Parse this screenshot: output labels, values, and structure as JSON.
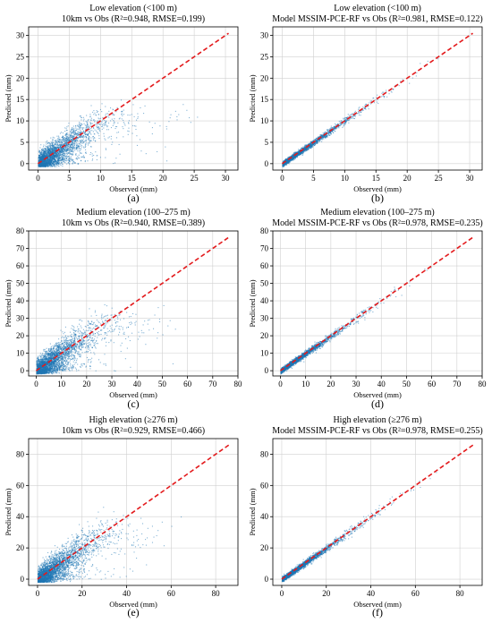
{
  "colors": {
    "points": "#1f77b4",
    "identity_line": "#e31a1c",
    "grid": "#d0d0d0",
    "axis": "#000000"
  },
  "chart_data": [
    {
      "id": "a",
      "label": "(a)",
      "type": "scatter",
      "title": "Low elevation (<100 m)",
      "subtitle": "10km vs Obs (R²=0.948, RMSE=0.199)",
      "xlabel": "Observed (mm)",
      "ylabel": "Predicted (mm)",
      "xlim": [
        -1.5,
        32
      ],
      "ylim": [
        -1.5,
        32
      ],
      "xticks": [
        0,
        5,
        10,
        15,
        20,
        25,
        30
      ],
      "yticks": [
        0,
        5,
        10,
        15,
        20,
        25,
        30
      ],
      "grid": true,
      "identity_line": [
        0,
        30.5
      ],
      "pattern": "wide",
      "maxObs": 30.5
    },
    {
      "id": "b",
      "label": "(b)",
      "type": "scatter",
      "title": "Low elevation (<100 m)",
      "subtitle": "Model MSSIM-PCE-RF vs Obs (R²=0.981, RMSE=0.122)",
      "xlabel": "Observed (mm)",
      "ylabel": "Predicted (mm)",
      "xlim": [
        -1.5,
        32
      ],
      "ylim": [
        -1.5,
        32
      ],
      "xticks": [
        0,
        5,
        10,
        15,
        20,
        25,
        30
      ],
      "yticks": [
        0,
        5,
        10,
        15,
        20,
        25,
        30
      ],
      "grid": true,
      "identity_line": [
        0,
        30.5
      ],
      "pattern": "tight",
      "maxObs": 30.5
    },
    {
      "id": "c",
      "label": "(c)",
      "type": "scatter",
      "title": "Medium elevation (100–275 m)",
      "subtitle": "10km vs Obs (R²=0.940, RMSE=0.389)",
      "xlabel": "Observed (mm)",
      "ylabel": "Predicted (mm)",
      "xlim": [
        -3,
        80
      ],
      "ylim": [
        -3,
        80
      ],
      "xticks": [
        0,
        10,
        20,
        30,
        40,
        50,
        60,
        70,
        80
      ],
      "yticks": [
        0,
        10,
        20,
        30,
        40,
        50,
        60,
        70,
        80
      ],
      "grid": true,
      "identity_line": [
        0,
        76.5
      ],
      "pattern": "wide",
      "maxObs": 76.5
    },
    {
      "id": "d",
      "label": "(d)",
      "type": "scatter",
      "title": "Medium elevation (100–275 m)",
      "subtitle": "Model MSSIM-PCE-RF vs Obs (R²=0.978, RMSE=0.235)",
      "xlabel": "Observed (mm)",
      "ylabel": "Predicted (mm)",
      "xlim": [
        -3,
        80
      ],
      "ylim": [
        -3,
        80
      ],
      "xticks": [
        0,
        10,
        20,
        30,
        40,
        50,
        60,
        70,
        80
      ],
      "yticks": [
        0,
        10,
        20,
        30,
        40,
        50,
        60,
        70,
        80
      ],
      "grid": true,
      "identity_line": [
        0,
        76.5
      ],
      "pattern": "tight",
      "maxObs": 76.5
    },
    {
      "id": "e",
      "label": "(e)",
      "type": "scatter",
      "title": "High elevation (≥276 m)",
      "subtitle": "10km vs Obs (R²=0.929, RMSE=0.466)",
      "xlabel": "Observed (mm)",
      "ylabel": "Predicted (mm)",
      "xlim": [
        -4,
        90
      ],
      "ylim": [
        -4,
        90
      ],
      "xticks": [
        0,
        20,
        40,
        60,
        80
      ],
      "yticks": [
        0,
        20,
        40,
        60,
        80
      ],
      "grid": true,
      "identity_line": [
        0,
        86.5
      ],
      "pattern": "wide",
      "maxObs": 86.5
    },
    {
      "id": "f",
      "label": "(f)",
      "type": "scatter",
      "title": "High elevation (≥276 m)",
      "subtitle": "Model MSSIM-PCE-RF vs Obs (R²=0.978, RMSE=0.255)",
      "xlabel": "Observed (mm)",
      "ylabel": "Predicted (mm)",
      "xlim": [
        -4,
        90
      ],
      "ylim": [
        -4,
        90
      ],
      "xticks": [
        0,
        20,
        40,
        60,
        80
      ],
      "yticks": [
        0,
        20,
        40,
        60,
        80
      ],
      "grid": true,
      "identity_line": [
        0,
        86.5
      ],
      "pattern": "tight",
      "maxObs": 86.5
    }
  ]
}
